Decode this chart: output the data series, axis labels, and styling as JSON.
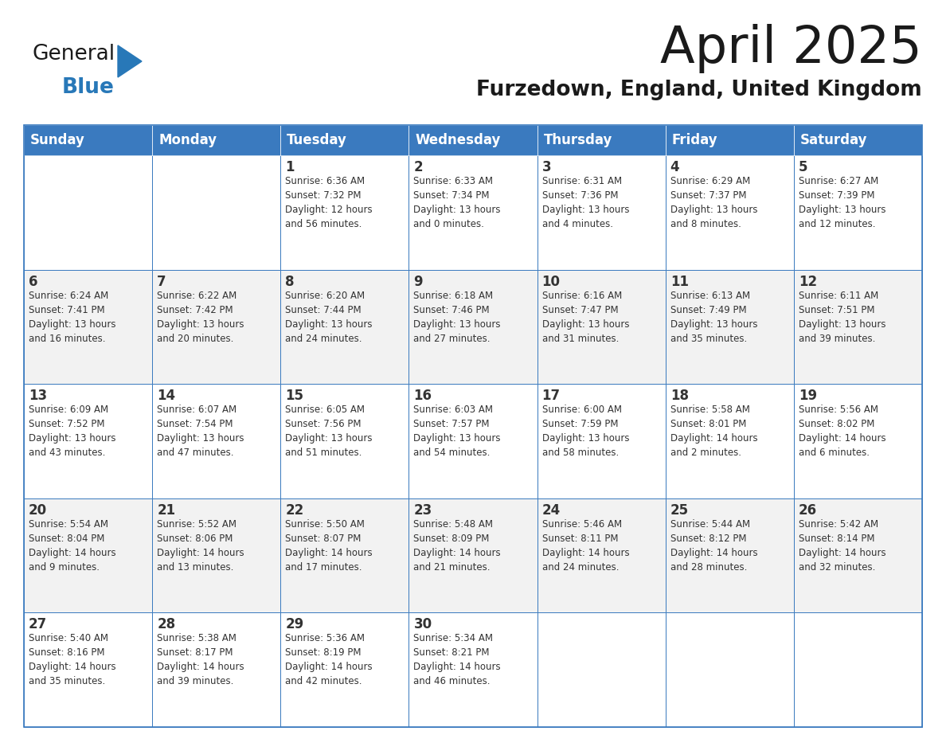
{
  "title": "April 2025",
  "subtitle": "Furzedown, England, United Kingdom",
  "days_of_week": [
    "Sunday",
    "Monday",
    "Tuesday",
    "Wednesday",
    "Thursday",
    "Friday",
    "Saturday"
  ],
  "header_bg": "#3a7abf",
  "header_text": "#ffffff",
  "cell_bg_white": "#ffffff",
  "cell_bg_gray": "#f2f2f2",
  "border_color": "#3a7abf",
  "text_color": "#333333",
  "title_color": "#1a1a1a",
  "subtitle_color": "#1a1a1a",
  "logo_general_color": "#1a1a1a",
  "logo_blue_color": "#2878b8",
  "calendar": [
    [
      {
        "day": "",
        "info": ""
      },
      {
        "day": "",
        "info": ""
      },
      {
        "day": "1",
        "info": "Sunrise: 6:36 AM\nSunset: 7:32 PM\nDaylight: 12 hours\nand 56 minutes."
      },
      {
        "day": "2",
        "info": "Sunrise: 6:33 AM\nSunset: 7:34 PM\nDaylight: 13 hours\nand 0 minutes."
      },
      {
        "day": "3",
        "info": "Sunrise: 6:31 AM\nSunset: 7:36 PM\nDaylight: 13 hours\nand 4 minutes."
      },
      {
        "day": "4",
        "info": "Sunrise: 6:29 AM\nSunset: 7:37 PM\nDaylight: 13 hours\nand 8 minutes."
      },
      {
        "day": "5",
        "info": "Sunrise: 6:27 AM\nSunset: 7:39 PM\nDaylight: 13 hours\nand 12 minutes."
      }
    ],
    [
      {
        "day": "6",
        "info": "Sunrise: 6:24 AM\nSunset: 7:41 PM\nDaylight: 13 hours\nand 16 minutes."
      },
      {
        "day": "7",
        "info": "Sunrise: 6:22 AM\nSunset: 7:42 PM\nDaylight: 13 hours\nand 20 minutes."
      },
      {
        "day": "8",
        "info": "Sunrise: 6:20 AM\nSunset: 7:44 PM\nDaylight: 13 hours\nand 24 minutes."
      },
      {
        "day": "9",
        "info": "Sunrise: 6:18 AM\nSunset: 7:46 PM\nDaylight: 13 hours\nand 27 minutes."
      },
      {
        "day": "10",
        "info": "Sunrise: 6:16 AM\nSunset: 7:47 PM\nDaylight: 13 hours\nand 31 minutes."
      },
      {
        "day": "11",
        "info": "Sunrise: 6:13 AM\nSunset: 7:49 PM\nDaylight: 13 hours\nand 35 minutes."
      },
      {
        "day": "12",
        "info": "Sunrise: 6:11 AM\nSunset: 7:51 PM\nDaylight: 13 hours\nand 39 minutes."
      }
    ],
    [
      {
        "day": "13",
        "info": "Sunrise: 6:09 AM\nSunset: 7:52 PM\nDaylight: 13 hours\nand 43 minutes."
      },
      {
        "day": "14",
        "info": "Sunrise: 6:07 AM\nSunset: 7:54 PM\nDaylight: 13 hours\nand 47 minutes."
      },
      {
        "day": "15",
        "info": "Sunrise: 6:05 AM\nSunset: 7:56 PM\nDaylight: 13 hours\nand 51 minutes."
      },
      {
        "day": "16",
        "info": "Sunrise: 6:03 AM\nSunset: 7:57 PM\nDaylight: 13 hours\nand 54 minutes."
      },
      {
        "day": "17",
        "info": "Sunrise: 6:00 AM\nSunset: 7:59 PM\nDaylight: 13 hours\nand 58 minutes."
      },
      {
        "day": "18",
        "info": "Sunrise: 5:58 AM\nSunset: 8:01 PM\nDaylight: 14 hours\nand 2 minutes."
      },
      {
        "day": "19",
        "info": "Sunrise: 5:56 AM\nSunset: 8:02 PM\nDaylight: 14 hours\nand 6 minutes."
      }
    ],
    [
      {
        "day": "20",
        "info": "Sunrise: 5:54 AM\nSunset: 8:04 PM\nDaylight: 14 hours\nand 9 minutes."
      },
      {
        "day": "21",
        "info": "Sunrise: 5:52 AM\nSunset: 8:06 PM\nDaylight: 14 hours\nand 13 minutes."
      },
      {
        "day": "22",
        "info": "Sunrise: 5:50 AM\nSunset: 8:07 PM\nDaylight: 14 hours\nand 17 minutes."
      },
      {
        "day": "23",
        "info": "Sunrise: 5:48 AM\nSunset: 8:09 PM\nDaylight: 14 hours\nand 21 minutes."
      },
      {
        "day": "24",
        "info": "Sunrise: 5:46 AM\nSunset: 8:11 PM\nDaylight: 14 hours\nand 24 minutes."
      },
      {
        "day": "25",
        "info": "Sunrise: 5:44 AM\nSunset: 8:12 PM\nDaylight: 14 hours\nand 28 minutes."
      },
      {
        "day": "26",
        "info": "Sunrise: 5:42 AM\nSunset: 8:14 PM\nDaylight: 14 hours\nand 32 minutes."
      }
    ],
    [
      {
        "day": "27",
        "info": "Sunrise: 5:40 AM\nSunset: 8:16 PM\nDaylight: 14 hours\nand 35 minutes."
      },
      {
        "day": "28",
        "info": "Sunrise: 5:38 AM\nSunset: 8:17 PM\nDaylight: 14 hours\nand 39 minutes."
      },
      {
        "day": "29",
        "info": "Sunrise: 5:36 AM\nSunset: 8:19 PM\nDaylight: 14 hours\nand 42 minutes."
      },
      {
        "day": "30",
        "info": "Sunrise: 5:34 AM\nSunset: 8:21 PM\nDaylight: 14 hours\nand 46 minutes."
      },
      {
        "day": "",
        "info": ""
      },
      {
        "day": "",
        "info": ""
      },
      {
        "day": "",
        "info": ""
      }
    ]
  ]
}
